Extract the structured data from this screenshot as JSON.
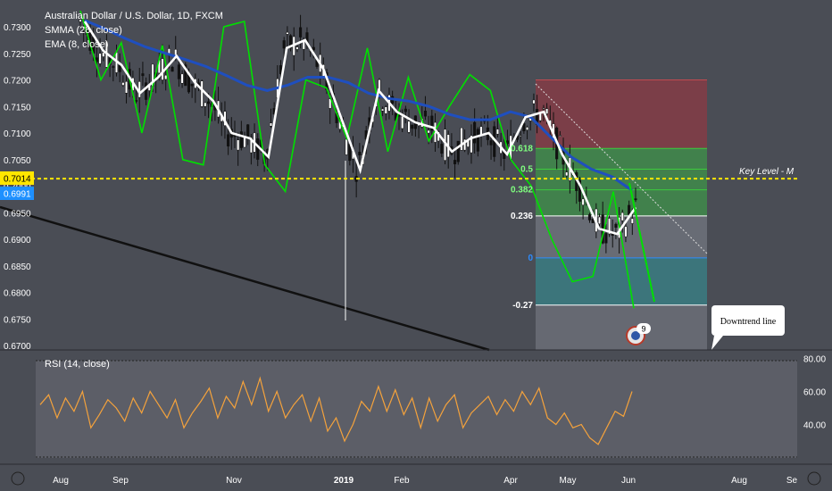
{
  "legend": {
    "symbol": "Australian Dollar / U.S. Dollar, 1D, FXCM",
    "smma": "SMMA (28, close)",
    "ema": "EMA (8, close)"
  },
  "rsi_label": "RSI (14, close)",
  "price_badges": {
    "key_level": "0.7014",
    "last_price": "0.6991"
  },
  "annotations": {
    "key_level_text": "Key Level - M",
    "downtrend_callout": "Downtrend line",
    "bubble_count": "9"
  },
  "colors": {
    "background": "#4a4d55",
    "smma": "#1f4fbf",
    "ema": "#ffffff",
    "zigzag": "#00e000",
    "key_level": "#ffe600",
    "rsi": "#f4a23c",
    "fib_zone_top": "#8c3a44",
    "fib_zone_mid": "#3f8f4a",
    "fib_zone_low": "#3b7a80"
  },
  "chart_data": [
    {
      "type": "line",
      "title": "Australian Dollar / U.S. Dollar, 1D, FXCM",
      "x_ticks": [
        "Aug",
        "Sep",
        "Nov",
        "2019",
        "Feb",
        "Apr",
        "May",
        "Jun",
        "Aug",
        "Se"
      ],
      "y_ticks": [
        0.73,
        0.725,
        0.72,
        0.715,
        0.71,
        0.705,
        0.7,
        0.695,
        0.69,
        0.685,
        0.68,
        0.675,
        0.67
      ],
      "ylim": [
        0.6695,
        0.733
      ],
      "series": [
        {
          "name": "SMMA (28, close)",
          "values": [
            0.7312,
            0.7296,
            0.7278,
            0.7262,
            0.725,
            0.7238,
            0.7225,
            0.7208,
            0.719,
            0.718,
            0.719,
            0.7205,
            0.7205,
            0.7195,
            0.7175,
            0.7165,
            0.716,
            0.715,
            0.7135,
            0.7125,
            0.7125,
            0.714,
            0.713,
            0.7092,
            0.7055,
            0.7032,
            0.7018,
            0.6992
          ]
        },
        {
          "name": "EMA (8, close)",
          "values": [
            0.731,
            0.7255,
            0.7228,
            0.7175,
            0.7205,
            0.7245,
            0.7195,
            0.716,
            0.71,
            0.709,
            0.7055,
            0.726,
            0.7275,
            0.722,
            0.7125,
            0.703,
            0.718,
            0.714,
            0.712,
            0.711,
            0.7065,
            0.709,
            0.71,
            0.706,
            0.713,
            0.714,
            0.706,
            0.7,
            0.692,
            0.691,
            0.696
          ]
        }
      ],
      "zigzag": [
        0.733,
        0.72,
        0.727,
        0.71,
        0.7265,
        0.705,
        0.704,
        0.73,
        0.731,
        0.704,
        0.699,
        0.72,
        0.7185,
        0.709,
        0.726,
        0.7065,
        0.7205,
        0.7085,
        0.715,
        0.721,
        0.718,
        0.705,
        0.7,
        0.69,
        0.682,
        0.683,
        0.699,
        0.677
      ],
      "key_level": 0.7014,
      "fibonacci": {
        "levels": [
          {
            "ratio": "1",
            "price": 0.72
          },
          {
            "ratio": "0.618",
            "price": 0.7071
          },
          {
            "ratio": "0.5",
            "price": 0.7032
          },
          {
            "ratio": "0.382",
            "price": 0.6993
          },
          {
            "ratio": "0.236",
            "price": 0.6944
          },
          {
            "ratio": "0",
            "price": 0.6865
          },
          {
            "ratio": "-0.27",
            "price": 0.6776
          }
        ],
        "labels": [
          "0.618",
          "0.5",
          "0.382",
          "0.236",
          "0",
          "-0.27"
        ]
      },
      "spike_low": 0.6747
    },
    {
      "type": "line",
      "title": "RSI (14, close)",
      "y_ticks": [
        80.0,
        60.0,
        40.0
      ],
      "ylim": [
        16,
        84
      ],
      "bands": [
        70,
        30
      ],
      "series": [
        {
          "name": "RSI (14, close)",
          "values": [
            52,
            58,
            44,
            56,
            48,
            60,
            38,
            46,
            55,
            50,
            42,
            56,
            47,
            60,
            52,
            44,
            55,
            38,
            47,
            54,
            62,
            44,
            57,
            50,
            66,
            52,
            68,
            48,
            60,
            44,
            52,
            58,
            42,
            56,
            36,
            44,
            30,
            40,
            54,
            48,
            63,
            48,
            61,
            46,
            56,
            38,
            56,
            42,
            52,
            58,
            38,
            47,
            52,
            57,
            46,
            55,
            48,
            60,
            52,
            62,
            44,
            40,
            47,
            38,
            40,
            32,
            28,
            38,
            48,
            45,
            60
          ]
        }
      ]
    }
  ]
}
